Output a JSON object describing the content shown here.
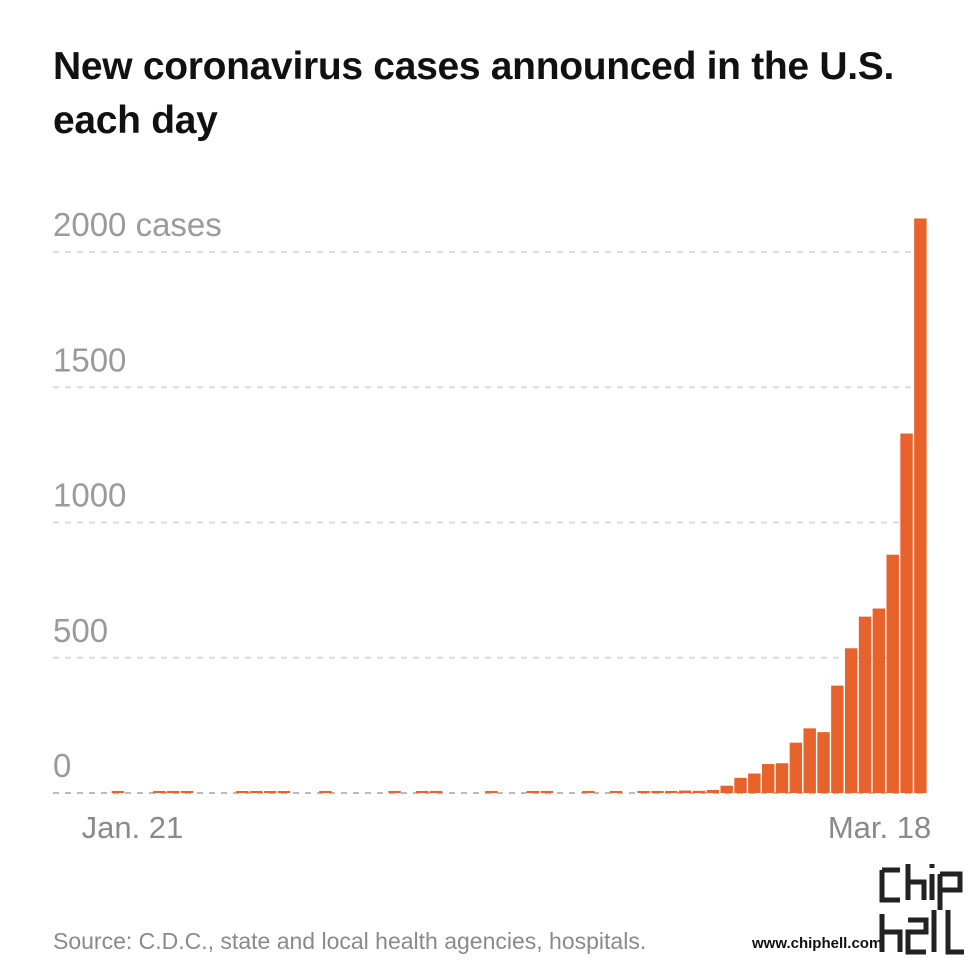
{
  "title": "New coronavirus cases announced in the U.S. each day",
  "source": "Source: C.D.C., state and local health agencies, hospitals.",
  "watermark": "www.chiphell.com",
  "colors": {
    "bar": "#e8622c",
    "grid": "#dddddd",
    "axis_text": "#9a9a9a"
  },
  "chart_data": {
    "type": "bar",
    "y_tick_labels": [
      "0",
      "500",
      "1000",
      "1500",
      "2000 cases"
    ],
    "y_ticks": [
      0,
      500,
      1000,
      1500,
      2000
    ],
    "ylim": [
      0,
      2000
    ],
    "x_labels": [
      {
        "text": "Jan. 21",
        "index": 3
      },
      {
        "text": "Mar. 18",
        "index": 57
      }
    ],
    "grid": "dashed-horizontal",
    "values": [
      0,
      0,
      1,
      0,
      0,
      1,
      1,
      1,
      0,
      0,
      0,
      1,
      1,
      1,
      1,
      0,
      0,
      1,
      0,
      0,
      0,
      0,
      1,
      0,
      1,
      1,
      0,
      0,
      0,
      4,
      0,
      0,
      1,
      1,
      0,
      0,
      6,
      0,
      5,
      0,
      1,
      2,
      3,
      9,
      8,
      11,
      27,
      56,
      72,
      107,
      110,
      186,
      239,
      225,
      397,
      535,
      652,
      682,
      881,
      1329,
      2124
    ]
  }
}
